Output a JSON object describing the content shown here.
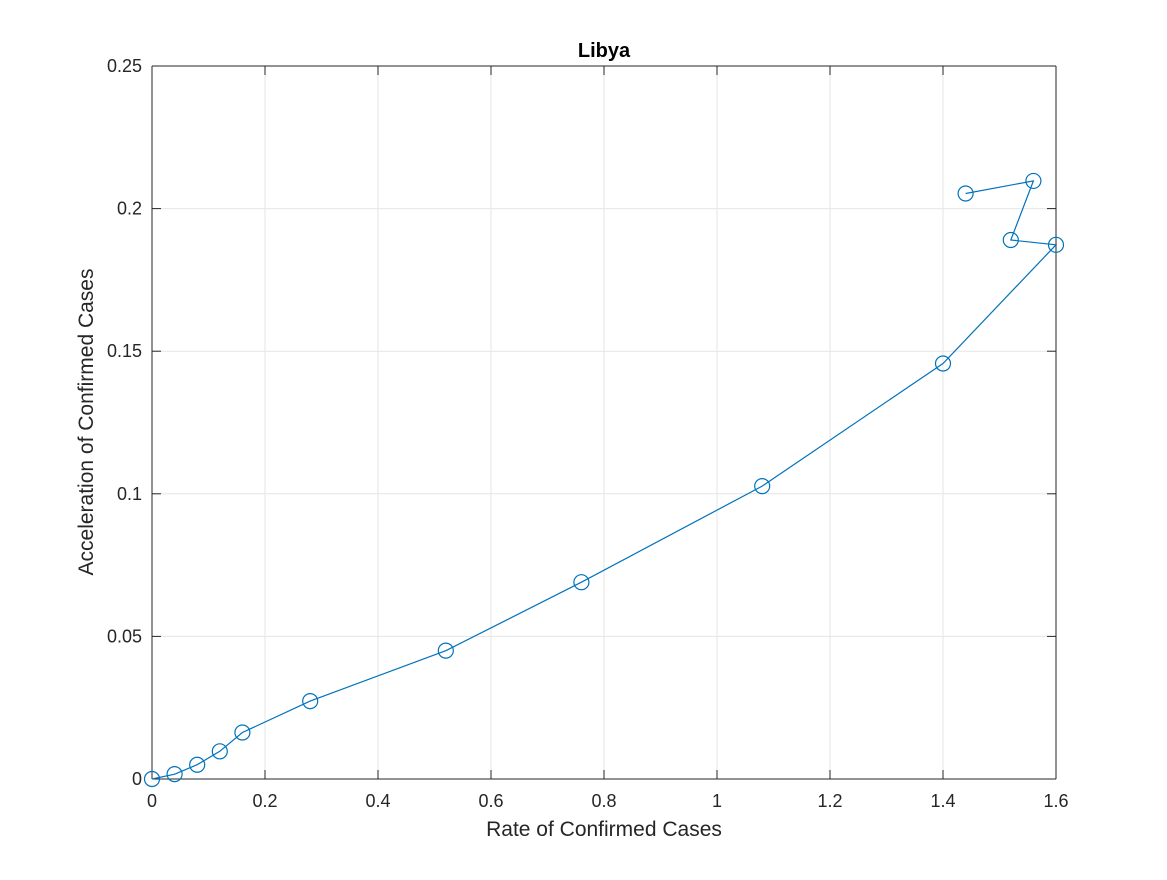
{
  "chart_data": {
    "type": "line",
    "title": "Libya",
    "xlabel": "Rate of Confirmed Cases",
    "ylabel": "Acceleration of Confirmed Cases",
    "xlim": [
      0,
      1.6
    ],
    "ylim": [
      0,
      0.25
    ],
    "xticks": [
      "0",
      "0.2",
      "0.4",
      "0.6",
      "0.8",
      "1",
      "1.2",
      "1.4",
      "1.6"
    ],
    "yticks": [
      "0",
      "0.05",
      "0.1",
      "0.15",
      "0.2",
      "0.25"
    ],
    "grid": true,
    "marker": "circle",
    "colors": {
      "series": "#0072BD",
      "grid": "#E6E6E6",
      "axis": "#262626"
    },
    "series": [
      {
        "x": [
          0,
          0.04,
          0.08,
          0.12,
          0.16,
          0.28,
          0.52,
          0.76,
          1.08,
          1.4,
          1.6,
          1.52,
          1.56,
          1.44
        ],
        "y": [
          0,
          0.0017,
          0.005,
          0.0097,
          0.0163,
          0.0273,
          0.045,
          0.069,
          0.1027,
          0.1457,
          0.1873,
          0.189,
          0.2097,
          0.2053
        ]
      }
    ]
  }
}
